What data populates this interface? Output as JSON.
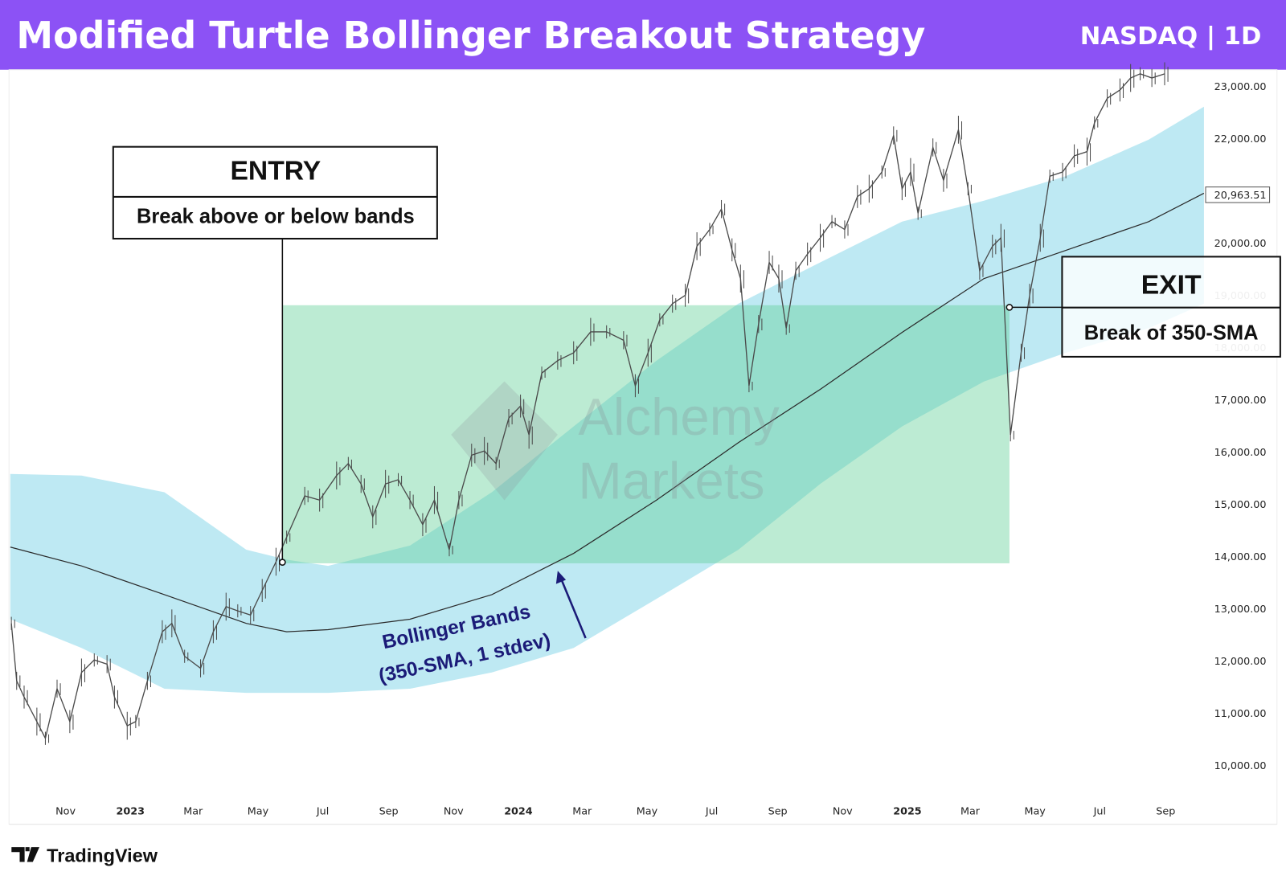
{
  "header": {
    "title": "Modified Turtle Bollinger Breakout Strategy",
    "symbol_timeframe": "NASDAQ | 1D",
    "background_color": "#8c52f5"
  },
  "footer": {
    "brand": "TradingView"
  },
  "watermark": {
    "line1": "Alchemy",
    "line2": "Markets"
  },
  "annotations": {
    "entry": {
      "heading": "ENTRY",
      "text": "Break above or below bands",
      "date": "2023-05-24",
      "price": 13900
    },
    "exit": {
      "heading": "EXIT",
      "text": "Break of 350-SMA",
      "date": "2025-04-07",
      "price": 18780
    },
    "bands_label": {
      "line1": "Bollinger Bands",
      "line2": "(350-SMA, 1 stdev)"
    },
    "trade_zone": {
      "start": "2023-05-24",
      "end": "2025-04-07",
      "low": 13880,
      "high": 18820,
      "color": "#5fcf96"
    }
  },
  "chart_data": {
    "type": "line",
    "title": "Modified Turtle Bollinger Breakout Strategy",
    "xlabel": "",
    "ylabel": "",
    "ylim": [
      9500,
      24000
    ],
    "grid": false,
    "y_ticks": [
      "10,000.00",
      "11,000.00",
      "12,000.00",
      "13,000.00",
      "14,000.00",
      "15,000.00",
      "16,000.00",
      "17,000.00",
      "18,000.00",
      "19,000.00",
      "20,000.00",
      "22,000.00",
      "23,000.00"
    ],
    "y_tick_values": [
      10000,
      11000,
      12000,
      13000,
      14000,
      15000,
      16000,
      17000,
      18000,
      19000,
      20000,
      22000,
      23000
    ],
    "x_ticks": [
      {
        "label": "Nov",
        "date": "2022-11-01",
        "year": false
      },
      {
        "label": "2023",
        "date": "2023-01-01",
        "year": true
      },
      {
        "label": "Mar",
        "date": "2023-03-01",
        "year": false
      },
      {
        "label": "May",
        "date": "2023-05-01",
        "year": false
      },
      {
        "label": "Jul",
        "date": "2023-07-01",
        "year": false
      },
      {
        "label": "Sep",
        "date": "2023-09-01",
        "year": false
      },
      {
        "label": "Nov",
        "date": "2023-11-01",
        "year": false
      },
      {
        "label": "2024",
        "date": "2024-01-01",
        "year": true
      },
      {
        "label": "Mar",
        "date": "2024-03-01",
        "year": false
      },
      {
        "label": "May",
        "date": "2024-05-01",
        "year": false
      },
      {
        "label": "Jul",
        "date": "2024-07-01",
        "year": false
      },
      {
        "label": "Sep",
        "date": "2024-09-01",
        "year": false
      },
      {
        "label": "Nov",
        "date": "2024-11-01",
        "year": false
      },
      {
        "label": "2025",
        "date": "2025-01-01",
        "year": true
      },
      {
        "label": "Mar",
        "date": "2025-03-01",
        "year": false
      },
      {
        "label": "May",
        "date": "2025-05-01",
        "year": false
      },
      {
        "label": "Jul",
        "date": "2025-07-01",
        "year": false
      },
      {
        "label": "Sep",
        "date": "2025-09-01",
        "year": false
      }
    ],
    "last_sma_label": "20,963.51",
    "colors": {
      "price": "#4a4a4a",
      "sma": "#2a2a2a",
      "bands": "#a8e2ef",
      "arrow": "#1b1b78"
    },
    "price": {
      "dates": [
        "2022-09-11",
        "2022-09-16",
        "2022-09-23",
        "2022-10-05",
        "2022-10-13",
        "2022-10-24",
        "2022-11-05",
        "2022-11-16",
        "2022-11-28",
        "2022-12-10",
        "2022-12-17",
        "2022-12-29",
        "2023-01-06",
        "2023-01-17",
        "2023-01-31",
        "2023-02-09",
        "2023-02-21",
        "2023-03-08",
        "2023-03-20",
        "2023-04-01",
        "2023-04-12",
        "2023-04-24",
        "2023-05-05",
        "2023-05-18",
        "2023-05-28",
        "2023-06-14",
        "2023-06-28",
        "2023-07-14",
        "2023-07-25",
        "2023-08-06",
        "2023-08-17",
        "2023-08-29",
        "2023-09-10",
        "2023-09-21",
        "2023-10-03",
        "2023-10-14",
        "2023-10-28",
        "2023-11-06",
        "2023-11-18",
        "2023-11-30",
        "2023-12-11",
        "2023-12-23",
        "2024-01-03",
        "2024-01-11",
        "2024-01-23",
        "2024-02-07",
        "2024-02-22",
        "2024-03-09",
        "2024-03-24",
        "2024-04-09",
        "2024-04-20",
        "2024-05-02",
        "2024-05-13",
        "2024-05-25",
        "2024-06-06",
        "2024-06-17",
        "2024-06-29",
        "2024-07-10",
        "2024-07-20",
        "2024-07-28",
        "2024-08-05",
        "2024-08-14",
        "2024-08-24",
        "2024-09-02",
        "2024-09-09",
        "2024-09-18",
        "2024-09-29",
        "2024-10-11",
        "2024-10-22",
        "2024-11-03",
        "2024-11-15",
        "2024-11-26",
        "2024-12-08",
        "2024-12-19",
        "2024-12-27",
        "2025-01-04",
        "2025-01-11",
        "2025-01-25",
        "2025-02-04",
        "2025-02-18",
        "2025-02-27",
        "2025-03-10",
        "2025-03-22",
        "2025-03-30",
        "2025-04-08",
        "2025-04-18",
        "2025-04-26",
        "2025-05-06",
        "2025-05-15",
        "2025-05-27",
        "2025-06-07",
        "2025-06-19",
        "2025-06-26",
        "2025-07-08",
        "2025-07-20",
        "2025-07-30",
        "2025-08-08",
        "2025-08-19",
        "2025-08-31"
      ],
      "close": [
        12730,
        11630,
        11320,
        10850,
        10530,
        11480,
        10850,
        11790,
        12030,
        11950,
        11320,
        10770,
        10850,
        11630,
        12570,
        12730,
        12100,
        11870,
        12570,
        13050,
        12970,
        12890,
        13360,
        13910,
        14380,
        15170,
        15090,
        15560,
        15790,
        15400,
        14770,
        15400,
        15480,
        15090,
        14620,
        15090,
        14140,
        15090,
        15950,
        16030,
        15790,
        16660,
        16890,
        16340,
        17520,
        17760,
        17910,
        18310,
        18310,
        18150,
        17280,
        17910,
        18540,
        18850,
        19010,
        19950,
        20270,
        20660,
        19880,
        19330,
        17280,
        18460,
        19640,
        19330,
        18380,
        19480,
        19800,
        20110,
        20420,
        20270,
        20900,
        21050,
        21370,
        22070,
        21050,
        21370,
        20580,
        21840,
        21210,
        22180,
        21050,
        19480,
        19950,
        20110,
        16340,
        17910,
        19010,
        20110,
        21290,
        21370,
        21680,
        21760,
        22310,
        22780,
        22940,
        23170,
        23250,
        23170,
        23250
      ]
    },
    "bands": {
      "dates": [
        "2022-09-10",
        "2022-11-16",
        "2023-02-02",
        "2023-04-20",
        "2023-05-28",
        "2023-07-06",
        "2023-09-21",
        "2023-12-07",
        "2024-02-22",
        "2024-05-10",
        "2024-07-26",
        "2024-10-11",
        "2024-12-27",
        "2025-03-14",
        "2025-05-30",
        "2025-08-16",
        "2025-10-07"
      ],
      "upper": [
        15590,
        15560,
        15240,
        14140,
        13950,
        13830,
        14220,
        15240,
        16500,
        17760,
        18850,
        19640,
        20420,
        20820,
        21290,
        21990,
        22620
      ],
      "sma": [
        14190,
        13830,
        13280,
        12730,
        12570,
        12610,
        12810,
        13280,
        14070,
        15090,
        16190,
        17210,
        18300,
        19330,
        19870,
        20420,
        20963.51
      ],
      "lower": [
        12810,
        12260,
        11480,
        11400,
        11400,
        11400,
        11480,
        11790,
        12260,
        13200,
        14140,
        15400,
        16500,
        17360,
        17910,
        18380,
        18850
      ]
    }
  }
}
